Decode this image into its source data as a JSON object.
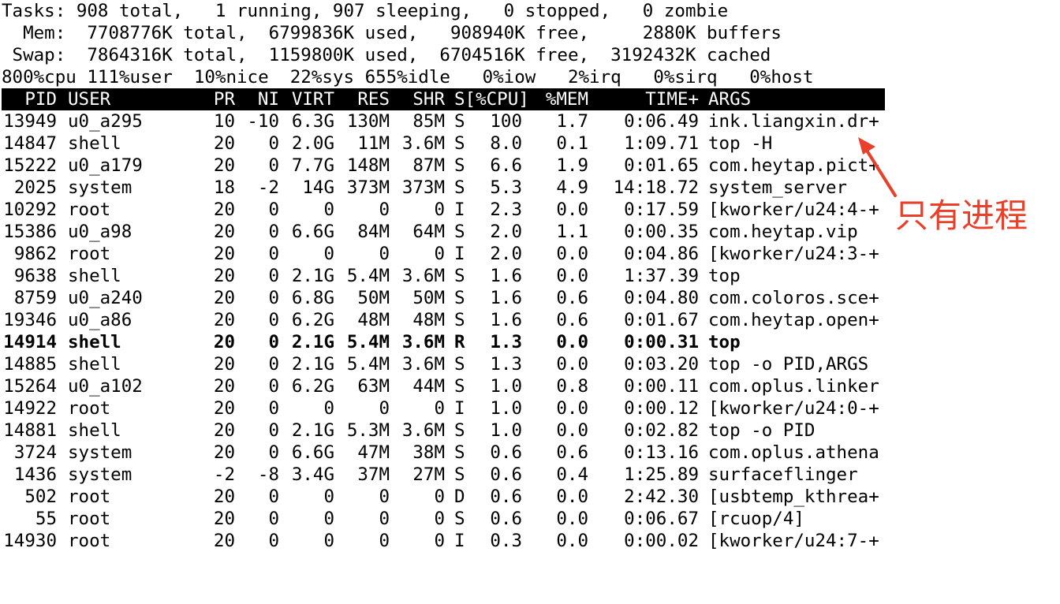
{
  "summary": {
    "tasks_line": "Tasks: 908 total,   1 running, 907 sleeping,   0 stopped,   0 zombie",
    "mem_line": "  Mem:  7708776K total,  6799836K used,   908940K free,     2880K buffers",
    "swap_line": " Swap:  7864316K total,  1159800K used,  6704516K free,  3192432K cached",
    "cpu_line": "800%cpu 111%user  10%nice  22%sys 655%idle   0%iow   2%irq   0%sirq   0%host"
  },
  "columns": {
    "pid": "PID",
    "user": "USER",
    "pr": "PR",
    "ni": "NI",
    "virt": "VIRT",
    "res": "RES",
    "shr": "SHR",
    "s_cpu": "S[%CPU]",
    "mem": "%MEM",
    "time": "TIME+",
    "args": "ARGS"
  },
  "processes": [
    {
      "pid": "13949",
      "user": "u0_a295",
      "pr": "10",
      "ni": "-10",
      "virt": "6.3G",
      "res": "130M",
      "shr": "85M",
      "s": "S",
      "cpu": "100",
      "mem": "1.7",
      "time": "0:06.49",
      "args": "ink.liangxin.dr+"
    },
    {
      "pid": "14847",
      "user": "shell",
      "pr": "20",
      "ni": "0",
      "virt": "2.0G",
      "res": "11M",
      "shr": "3.6M",
      "s": "S",
      "cpu": "8.0",
      "mem": "0.1",
      "time": "1:09.71",
      "args": "top -H"
    },
    {
      "pid": "15222",
      "user": "u0_a179",
      "pr": "20",
      "ni": "0",
      "virt": "7.7G",
      "res": "148M",
      "shr": "87M",
      "s": "S",
      "cpu": "6.6",
      "mem": "1.9",
      "time": "0:01.65",
      "args": "com.heytap.pict+"
    },
    {
      "pid": "2025",
      "user": "system",
      "pr": "18",
      "ni": "-2",
      "virt": "14G",
      "res": "373M",
      "shr": "373M",
      "s": "S",
      "cpu": "5.3",
      "mem": "4.9",
      "time": "14:18.72",
      "args": "system_server"
    },
    {
      "pid": "10292",
      "user": "root",
      "pr": "20",
      "ni": "0",
      "virt": "0",
      "res": "0",
      "shr": "0",
      "s": "I",
      "cpu": "2.3",
      "mem": "0.0",
      "time": "0:17.59",
      "args": "[kworker/u24:4-+"
    },
    {
      "pid": "15386",
      "user": "u0_a98",
      "pr": "20",
      "ni": "0",
      "virt": "6.6G",
      "res": "84M",
      "shr": "64M",
      "s": "S",
      "cpu": "2.0",
      "mem": "1.1",
      "time": "0:00.35",
      "args": "com.heytap.vip"
    },
    {
      "pid": "9862",
      "user": "root",
      "pr": "20",
      "ni": "0",
      "virt": "0",
      "res": "0",
      "shr": "0",
      "s": "I",
      "cpu": "2.0",
      "mem": "0.0",
      "time": "0:04.86",
      "args": "[kworker/u24:3-+"
    },
    {
      "pid": "9638",
      "user": "shell",
      "pr": "20",
      "ni": "0",
      "virt": "2.1G",
      "res": "5.4M",
      "shr": "3.6M",
      "s": "S",
      "cpu": "1.6",
      "mem": "0.0",
      "time": "1:37.39",
      "args": "top"
    },
    {
      "pid": "8759",
      "user": "u0_a240",
      "pr": "20",
      "ni": "0",
      "virt": "6.8G",
      "res": "50M",
      "shr": "50M",
      "s": "S",
      "cpu": "1.6",
      "mem": "0.6",
      "time": "0:04.80",
      "args": "com.coloros.sce+"
    },
    {
      "pid": "19346",
      "user": "u0_a86",
      "pr": "20",
      "ni": "0",
      "virt": "6.2G",
      "res": "48M",
      "shr": "48M",
      "s": "S",
      "cpu": "1.6",
      "mem": "0.6",
      "time": "0:01.67",
      "args": "com.heytap.open+"
    },
    {
      "pid": "14914",
      "user": "shell",
      "pr": "20",
      "ni": "0",
      "virt": "2.1G",
      "res": "5.4M",
      "shr": "3.6M",
      "s": "R",
      "cpu": "1.3",
      "mem": "0.0",
      "time": "0:00.31",
      "args": "top",
      "bold": true
    },
    {
      "pid": "14885",
      "user": "shell",
      "pr": "20",
      "ni": "0",
      "virt": "2.1G",
      "res": "5.4M",
      "shr": "3.6M",
      "s": "S",
      "cpu": "1.3",
      "mem": "0.0",
      "time": "0:03.20",
      "args": "top -o PID,ARGS"
    },
    {
      "pid": "15264",
      "user": "u0_a102",
      "pr": "20",
      "ni": "0",
      "virt": "6.2G",
      "res": "63M",
      "shr": "44M",
      "s": "S",
      "cpu": "1.0",
      "mem": "0.8",
      "time": "0:00.11",
      "args": "com.oplus.linker"
    },
    {
      "pid": "14922",
      "user": "root",
      "pr": "20",
      "ni": "0",
      "virt": "0",
      "res": "0",
      "shr": "0",
      "s": "I",
      "cpu": "1.0",
      "mem": "0.0",
      "time": "0:00.12",
      "args": "[kworker/u24:0-+"
    },
    {
      "pid": "14881",
      "user": "shell",
      "pr": "20",
      "ni": "0",
      "virt": "2.1G",
      "res": "5.3M",
      "shr": "3.6M",
      "s": "S",
      "cpu": "1.0",
      "mem": "0.0",
      "time": "0:02.82",
      "args": "top -o PID"
    },
    {
      "pid": "3724",
      "user": "system",
      "pr": "20",
      "ni": "0",
      "virt": "6.6G",
      "res": "47M",
      "shr": "38M",
      "s": "S",
      "cpu": "0.6",
      "mem": "0.6",
      "time": "0:13.16",
      "args": "com.oplus.athena"
    },
    {
      "pid": "1436",
      "user": "system",
      "pr": "-2",
      "ni": "-8",
      "virt": "3.4G",
      "res": "37M",
      "shr": "27M",
      "s": "S",
      "cpu": "0.6",
      "mem": "0.4",
      "time": "1:25.89",
      "args": "surfaceflinger"
    },
    {
      "pid": "502",
      "user": "root",
      "pr": "20",
      "ni": "0",
      "virt": "0",
      "res": "0",
      "shr": "0",
      "s": "D",
      "cpu": "0.6",
      "mem": "0.0",
      "time": "2:42.30",
      "args": "[usbtemp_kthrea+"
    },
    {
      "pid": "55",
      "user": "root",
      "pr": "20",
      "ni": "0",
      "virt": "0",
      "res": "0",
      "shr": "0",
      "s": "S",
      "cpu": "0.6",
      "mem": "0.0",
      "time": "0:06.67",
      "args": "[rcuop/4]"
    },
    {
      "pid": "14930",
      "user": "root",
      "pr": "20",
      "ni": "0",
      "virt": "0",
      "res": "0",
      "shr": "0",
      "s": "I",
      "cpu": "0.3",
      "mem": "0.0",
      "time": "0:00.02",
      "args": "[kworker/u24:7-+"
    }
  ],
  "annotation": {
    "text": "只有进程",
    "color": "#e8402a"
  }
}
